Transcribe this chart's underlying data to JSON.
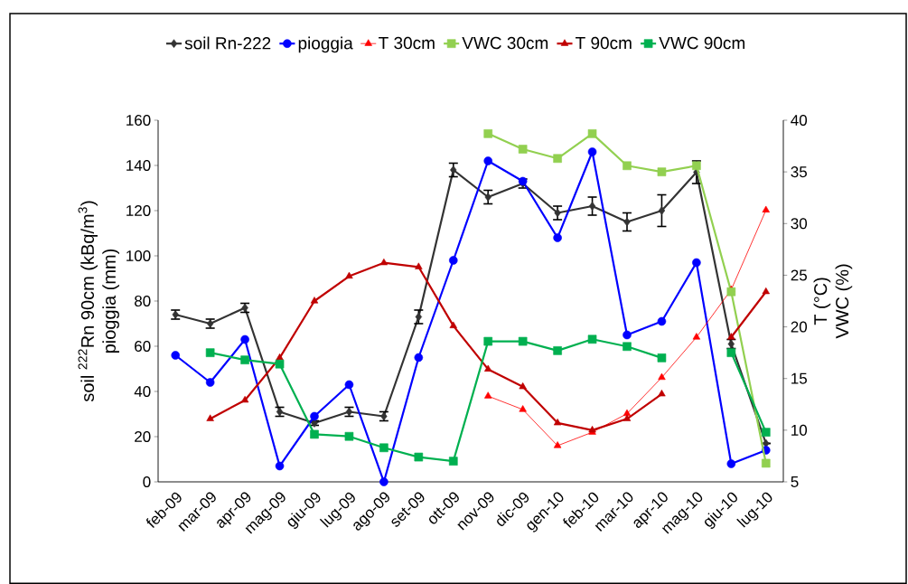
{
  "chart_data": {
    "type": "line",
    "categories": [
      "feb-09",
      "mar-09",
      "apr-09",
      "mag-09",
      "giu-09",
      "lug-09",
      "ago-09",
      "set-09",
      "ott-09",
      "nov-09",
      "dic-09",
      "gen-10",
      "feb-10",
      "mar-10",
      "apr-10",
      "mag-10",
      "giu-10",
      "lug-10"
    ],
    "ylabel": [
      "soil $^{222}$Rn 90cm (kBq/m$^{3}$)",
      "pioggia (mm)"
    ],
    "y2label": [
      "T (°C)",
      "VWC (%)"
    ],
    "ylim": [
      0,
      160
    ],
    "yticks": [
      0,
      20,
      40,
      60,
      80,
      100,
      120,
      140,
      160
    ],
    "y2lim": [
      5,
      40
    ],
    "y2ticks": [
      5,
      10,
      15,
      20,
      25,
      30,
      35,
      40
    ],
    "legend": "top",
    "grid": false,
    "series": [
      {
        "name": "soil Rn-222",
        "color": "#333333",
        "marker": "diamond",
        "values": [
          74,
          70,
          77,
          31,
          26,
          31,
          29,
          73,
          138,
          126,
          132,
          119,
          122,
          115,
          120,
          137,
          61,
          17
        ],
        "errors": [
          2,
          2,
          2,
          2,
          1,
          2,
          2,
          3,
          3,
          3,
          2,
          3,
          4,
          4,
          7,
          5,
          2,
          null
        ]
      },
      {
        "name": "pioggia",
        "color": "#0000ff",
        "marker": "circle",
        "values": [
          56,
          44,
          63,
          7,
          29,
          43,
          0,
          55,
          98,
          142,
          133,
          108,
          146,
          65,
          71,
          97,
          8,
          14
        ]
      },
      {
        "name": "T 30cm",
        "color": "#ff0000",
        "marker": "triangle",
        "axis": "y2",
        "values": [
          null,
          null,
          null,
          null,
          null,
          null,
          null,
          null,
          null,
          13.3,
          12.0,
          8.5,
          9.8,
          11.6,
          15.1,
          19.0,
          23.6,
          31.3
        ]
      },
      {
        "name": "VWC 30cm",
        "color": "#92d050",
        "marker": "square",
        "axis": "y2",
        "values": [
          null,
          null,
          null,
          null,
          null,
          null,
          null,
          null,
          null,
          38.7,
          37.2,
          36.3,
          38.7,
          35.6,
          35.0,
          35.6,
          23.4,
          6.8
        ]
      },
      {
        "name": "T 90cm",
        "color": "#c00000",
        "marker": "triangle",
        "axis": "y2",
        "values": [
          null,
          11.1,
          12.9,
          17.0,
          22.5,
          24.9,
          26.2,
          25.8,
          20.1,
          15.9,
          14.2,
          10.7,
          10.0,
          11.1,
          13.5,
          null,
          19.0,
          23.4
        ]
      },
      {
        "name": "VWC 90cm",
        "color": "#00b050",
        "marker": "square",
        "axis": "y2",
        "values": [
          null,
          17.5,
          16.8,
          16.4,
          9.6,
          9.4,
          8.3,
          7.4,
          7.0,
          18.6,
          18.6,
          17.7,
          18.8,
          18.1,
          17.0,
          null,
          17.5,
          9.8
        ]
      }
    ]
  }
}
